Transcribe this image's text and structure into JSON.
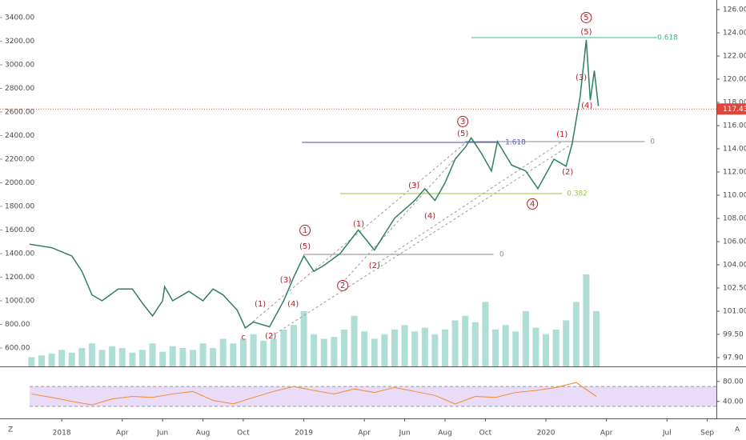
{
  "chart_data": {
    "type": "line",
    "xlim": [
      -3.06,
      32.45
    ],
    "xticks": [
      {
        "value": 0,
        "label": "2018"
      },
      {
        "value": 3,
        "label": "Apr"
      },
      {
        "value": 5,
        "label": "Jun"
      },
      {
        "value": 7,
        "label": "Aug"
      },
      {
        "value": 9,
        "label": "Oct"
      },
      {
        "value": 12,
        "label": "2019"
      },
      {
        "value": 15,
        "label": "Apr"
      },
      {
        "value": 17,
        "label": "Jun"
      },
      {
        "value": 19,
        "label": "Aug"
      },
      {
        "value": 21,
        "label": "Oct"
      },
      {
        "value": 24,
        "label": "2020"
      },
      {
        "value": 27,
        "label": "Apr"
      },
      {
        "value": 30,
        "label": "Jul"
      },
      {
        "value": 32,
        "label": "Sep"
      }
    ],
    "ylim": [
      444,
      3549
    ],
    "yticks": [
      {
        "value": 600,
        "label": "600.00"
      },
      {
        "value": 800,
        "label": "800.00"
      },
      {
        "value": 1000,
        "label": "1000.00"
      },
      {
        "value": 1200,
        "label": "1200.00"
      },
      {
        "value": 1400,
        "label": "1400.00"
      },
      {
        "value": 1600,
        "label": "1600.00"
      },
      {
        "value": 1800,
        "label": "1800.00"
      },
      {
        "value": 2000,
        "label": "2000.00"
      },
      {
        "value": 2200,
        "label": "2200.00"
      },
      {
        "value": 2400,
        "label": "2400.00"
      },
      {
        "value": 2600,
        "label": "2600.00"
      },
      {
        "value": 2800,
        "label": "2800.00"
      },
      {
        "value": 3000,
        "label": "3000.00"
      },
      {
        "value": 3200,
        "label": "3200.00"
      },
      {
        "value": 3400,
        "label": "3400.00"
      }
    ],
    "y2ticks": [
      {
        "value": 126,
        "label": "126.00"
      },
      {
        "value": 124,
        "label": "124.00"
      },
      {
        "value": 122,
        "label": "122.00"
      },
      {
        "value": 120,
        "label": "120.00"
      },
      {
        "value": 118,
        "label": "118.00"
      },
      {
        "value": 116,
        "label": "116.00"
      },
      {
        "value": 114,
        "label": "114.00"
      },
      {
        "value": 112,
        "label": "112.00"
      },
      {
        "value": 110,
        "label": "110.00"
      },
      {
        "value": 108,
        "label": "108.00"
      },
      {
        "value": 106,
        "label": "106.00"
      },
      {
        "value": 104,
        "label": "104.00"
      },
      {
        "value": 102.5,
        "label": "102.50"
      },
      {
        "value": 101,
        "label": "101.00"
      },
      {
        "value": 99.5,
        "label": "99.50"
      },
      {
        "value": 97.9,
        "label": "97.90"
      }
    ],
    "last_price": 117.43,
    "last_price_color": "#e0463a",
    "series": [
      {
        "color": "#2f7f62",
        "x": [
          -1.6,
          -0.5,
          0.5,
          1,
          1.5,
          2,
          2.8,
          3.5,
          4,
          4.5,
          5,
          5.1,
          5.5,
          6.3,
          7,
          7.5,
          8,
          8.7,
          9.1,
          9.5,
          10.3,
          11,
          11.5,
          12,
          12.5,
          13,
          13.8,
          14.7,
          15.5,
          16.5,
          17.5,
          18,
          18.5,
          19,
          19.5,
          20,
          20.3,
          20.8,
          21.3,
          21.6,
          22.3,
          23,
          23.6,
          24.4,
          25,
          25.3,
          25.7,
          26,
          26.2,
          26.4,
          26.6
        ],
        "values": [
          1480,
          1450,
          1380,
          1250,
          1050,
          1000,
          1100,
          1100,
          980,
          871,
          1000,
          1120,
          1000,
          1080,
          1000,
          1100,
          1050,
          920,
          770,
          820,
          780,
          1000,
          1200,
          1380,
          1250,
          1300,
          1400,
          1600,
          1430,
          1700,
          1850,
          1950,
          1850,
          2000,
          2200,
          2300,
          2380,
          2250,
          2100,
          2350,
          2150,
          2100,
          1950,
          2200,
          2140,
          2330,
          2735,
          3210,
          2700,
          2950,
          2650
        ]
      }
    ],
    "volume": {
      "color": "#9ad6cc",
      "x": [
        -1.5,
        -1,
        -0.5,
        0,
        0.5,
        1,
        1.5,
        2,
        2.5,
        3,
        3.5,
        4,
        4.5,
        5,
        5.5,
        6,
        6.5,
        7,
        7.5,
        8,
        8.5,
        9,
        9.5,
        10,
        10.5,
        11,
        11.5,
        12,
        12.5,
        13,
        13.5,
        14,
        14.5,
        15,
        15.5,
        16,
        16.5,
        17,
        17.5,
        18,
        18.5,
        19,
        19.5,
        20,
        20.5,
        21,
        21.5,
        22,
        22.5,
        23,
        23.5,
        24,
        24.5,
        25,
        25.5,
        26,
        26.5
      ],
      "values": [
        10,
        12,
        14,
        18,
        15,
        20,
        25,
        18,
        22,
        20,
        15,
        18,
        25,
        16,
        22,
        20,
        18,
        25,
        20,
        30,
        25,
        30,
        35,
        28,
        30,
        40,
        45,
        60,
        35,
        30,
        32,
        40,
        55,
        38,
        30,
        35,
        40,
        45,
        38,
        42,
        35,
        40,
        50,
        55,
        48,
        70,
        40,
        45,
        38,
        60,
        42,
        35,
        40,
        50,
        70,
        100,
        60
      ]
    },
    "rsi": {
      "color": "#f28a2e",
      "band_color": "#e9dcf8",
      "ylim": [
        6,
        107
      ],
      "yticks": [
        {
          "value": 80,
          "label": "80.00"
        },
        {
          "value": 40,
          "label": "40.00"
        }
      ],
      "bands": [
        30,
        70
      ],
      "x": [
        -1.5,
        -0.5,
        0.5,
        1.5,
        2.5,
        3.5,
        4.5,
        5.5,
        6.5,
        7.5,
        8.5,
        9.5,
        10.5,
        11.5,
        12.5,
        13.5,
        14.5,
        15.5,
        16.5,
        17.5,
        18.5,
        19.5,
        20.5,
        21.5,
        22.5,
        23.5,
        24.5,
        25.5,
        26.5
      ],
      "values": [
        55,
        48,
        40,
        33,
        45,
        50,
        48,
        55,
        60,
        42,
        35,
        48,
        60,
        70,
        62,
        55,
        65,
        58,
        68,
        60,
        52,
        35,
        50,
        48,
        58,
        62,
        68,
        78,
        50
      ]
    },
    "levels": [
      {
        "label": "0.618",
        "y": 3230,
        "x": [
          20.3,
          29.5
        ],
        "color": "#3cb88a",
        "label_x": 29.52
      },
      {
        "label": "1.618",
        "y": 2342,
        "x": [
          11.9,
          21.6
        ],
        "color": "#4a50b0",
        "label_x": 21.98
      },
      {
        "label": "0.382",
        "y": 1908,
        "x": [
          13.8,
          24.8
        ],
        "color": "#9bc53d",
        "label_x": 25.04
      },
      {
        "label": "0",
        "y": 1393,
        "x": [
          12.0,
          21.4
        ],
        "color": "#8a8a8a",
        "label_x": 21.7
      },
      {
        "label": "0",
        "y": 2349,
        "x": [
          20.0,
          28.9
        ],
        "color": "#8a8a8a",
        "label_x": 29.17
      }
    ],
    "channels": [
      [
        9.1,
        770,
        20.3,
        2380
      ],
      [
        10.4,
        700,
        25.3,
        2330
      ],
      [
        13.9,
        1150,
        20.0,
        2300
      ],
      [
        15.5,
        1300,
        24.8,
        2350
      ]
    ],
    "annotations": [
      {
        "text": "c",
        "x": 9.0,
        "y": 690,
        "circle": false
      },
      {
        "text": "(1)",
        "x": 9.84,
        "y": 973,
        "circle": false
      },
      {
        "text": "(2)",
        "x": 10.36,
        "y": 702,
        "circle": false
      },
      {
        "text": "(3)",
        "x": 11.1,
        "y": 1176,
        "circle": false
      },
      {
        "text": "(4)",
        "x": 11.47,
        "y": 973,
        "circle": false
      },
      {
        "text": "(5)",
        "x": 12.06,
        "y": 1461,
        "circle": false
      },
      {
        "text": "1",
        "x": 12.06,
        "y": 1597,
        "circle": true
      },
      {
        "text": "2",
        "x": 13.93,
        "y": 1129,
        "circle": true
      },
      {
        "text": "(1)",
        "x": 14.72,
        "y": 1651,
        "circle": false
      },
      {
        "text": "(2)",
        "x": 15.5,
        "y": 1298,
        "circle": false
      },
      {
        "text": "(3)",
        "x": 17.46,
        "y": 1977,
        "circle": false
      },
      {
        "text": "(4)",
        "x": 18.25,
        "y": 1720,
        "circle": false
      },
      {
        "text": "(5)",
        "x": 19.88,
        "y": 2418,
        "circle": false
      },
      {
        "text": "3",
        "x": 19.88,
        "y": 2519,
        "circle": true
      },
      {
        "text": "4",
        "x": 23.33,
        "y": 1821,
        "circle": true
      },
      {
        "text": "(1)",
        "x": 24.8,
        "y": 2410,
        "circle": false
      },
      {
        "text": "(2)",
        "x": 25.08,
        "y": 2092,
        "circle": false
      },
      {
        "text": "(3)",
        "x": 25.75,
        "y": 2892,
        "circle": false
      },
      {
        "text": "(4)",
        "x": 26.03,
        "y": 2655,
        "circle": false
      },
      {
        "text": "(5)",
        "x": 26.0,
        "y": 3278,
        "circle": false
      },
      {
        "text": "5",
        "x": 26.0,
        "y": 3400,
        "circle": true
      }
    ],
    "footer_left": "Z",
    "footer_right": "A"
  }
}
